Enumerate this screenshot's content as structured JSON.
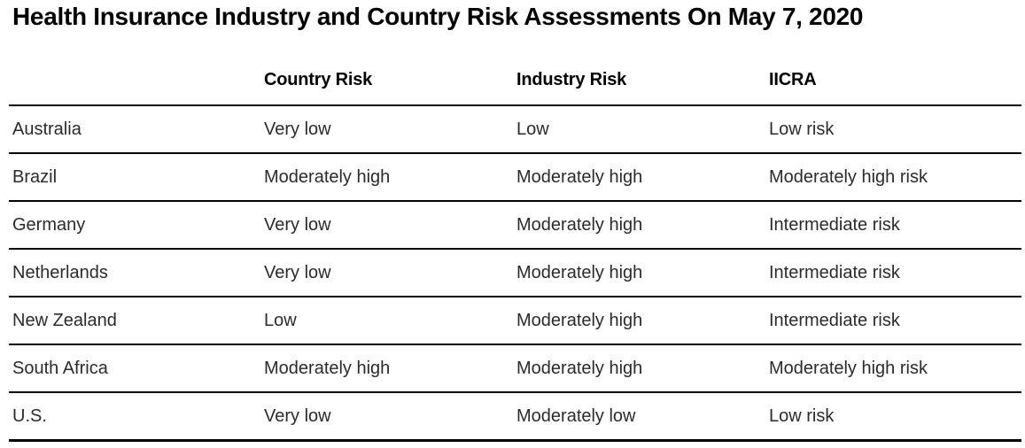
{
  "title": "Health Insurance Industry and Country Risk Assessments On May 7, 2020",
  "chart_data": {
    "type": "table",
    "title": "Health Insurance Industry and Country Risk Assessments On May 7, 2020",
    "columns": [
      "",
      "Country Risk",
      "Industry Risk",
      "IICRA"
    ],
    "rows": [
      [
        "Australia",
        "Very low",
        "Low",
        "Low risk"
      ],
      [
        "Brazil",
        "Moderately high",
        "Moderately high",
        "Moderately high risk"
      ],
      [
        "Germany",
        "Very low",
        "Moderately high",
        "Intermediate risk"
      ],
      [
        "Netherlands",
        "Very low",
        "Moderately high",
        "Intermediate risk"
      ],
      [
        "New Zealand",
        "Low",
        "Moderately high",
        "Intermediate risk"
      ],
      [
        "South Africa",
        "Moderately high",
        "Moderately high",
        "Moderately high risk"
      ],
      [
        "U.S.",
        "Very low",
        "Moderately low",
        "Low risk"
      ]
    ],
    "layout": {
      "grid": "horizontal-rules-only",
      "legend": "none"
    }
  },
  "colors": {
    "background": "#ffffff",
    "title_text": "#000000",
    "header_text": "#000000",
    "body_text": "#2b2b2b",
    "rule_line": "#000000"
  }
}
